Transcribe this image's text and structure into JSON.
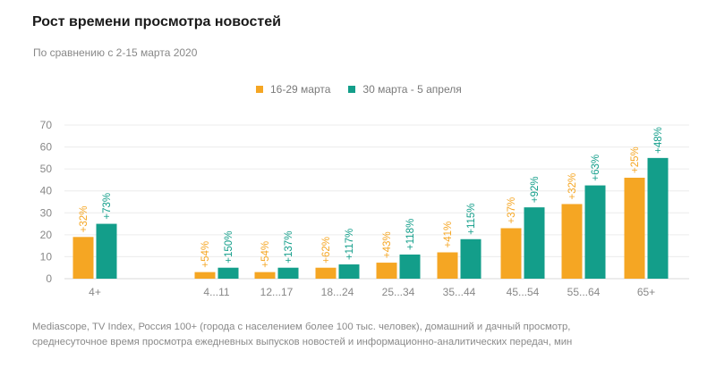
{
  "title": "Рост времени просмотра новостей",
  "subtitle": "По сравнению с 2-15 марта 2020",
  "source_line1": "Mediascope, TV Index, Россия 100+ (города с населением более 100 тыс. человек), домашний и дачный просмотр,",
  "source_line2": "среднесуточное время просмотра ежедневных выпусков новостей и информационно-аналитических передач, мин",
  "colors": {
    "series1": "#f5a623",
    "series2": "#139e8a",
    "grid": "#ececec",
    "axis_text": "#888888"
  },
  "chart_data": {
    "type": "bar",
    "title": "Рост времени просмотра новостей",
    "subtitle": "По сравнению с 2-15 марта 2020",
    "xlabel": "",
    "ylabel": "",
    "ylim": [
      0,
      70
    ],
    "yticks": [
      "0",
      "10",
      "20",
      "30",
      "40",
      "50",
      "60",
      "70"
    ],
    "grid": true,
    "legend_position": "top-center",
    "categories": [
      "4+",
      "4...11",
      "12...17",
      "18...24",
      "25...34",
      "35...44",
      "45...54",
      "55...64",
      "65+"
    ],
    "series": [
      {
        "name": "16-29 марта",
        "values": [
          19,
          3,
          3,
          5,
          7.3,
          12,
          23,
          34,
          46
        ],
        "labels": [
          "+32%",
          "+54%",
          "+54%",
          "+62%",
          "+43%",
          "+41%",
          "+37%",
          "+32%",
          "+25%"
        ]
      },
      {
        "name": "30 марта - 5 апреля",
        "values": [
          25,
          5,
          5,
          6.5,
          11,
          18,
          32.5,
          42.5,
          55
        ],
        "labels": [
          "+73%",
          "+150%",
          "+137%",
          "+117%",
          "+118%",
          "+115%",
          "+92%",
          "+63%",
          "+48%"
        ]
      }
    ]
  }
}
